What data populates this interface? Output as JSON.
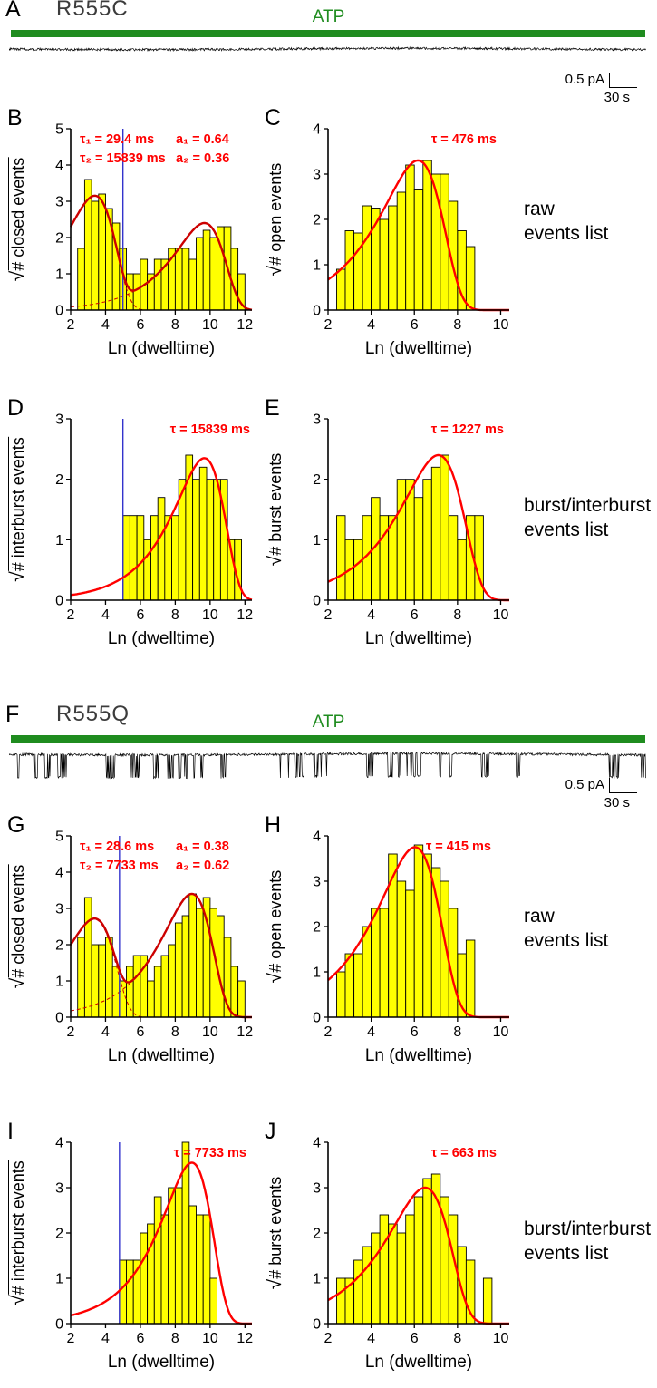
{
  "colors": {
    "bar_fill": "#ffff00",
    "bar_stroke": "#000000",
    "fit_dark_red": "#cc0000",
    "fit_bright_red": "#ff0000",
    "cutoff_line": "#3333cc",
    "atp_green": "#1f8c1f",
    "annotation_red": "#ff0000"
  },
  "symbols": {
    "sqrt": "√"
  },
  "trace_panels": [
    {
      "letter": "A",
      "title": "R555C",
      "atp": "ATP",
      "scale_current": "0.5 pA",
      "scale_time": "30 s"
    },
    {
      "letter": "F",
      "title": "R555Q",
      "atp": "ATP",
      "scale_current": "0.5 pA",
      "scale_time": "30 s"
    }
  ],
  "side_labels": [
    {
      "lines": [
        "raw",
        "events list"
      ]
    },
    {
      "lines": [
        "burst/interburst",
        "events list"
      ]
    }
  ],
  "chart_data": [
    {
      "type": "bar",
      "letter": "B",
      "ylabel": "# closed events",
      "xlabel": "Ln (dwelltime)",
      "xlim": [
        2,
        12.4
      ],
      "ylim": [
        0,
        5
      ],
      "xticks": [
        2,
        4,
        6,
        8,
        10,
        12
      ],
      "yticks": [
        0,
        1,
        2,
        3,
        4,
        5
      ],
      "bin_start": 2.4,
      "bin_width": 0.4,
      "values": [
        1.7,
        3.6,
        3.0,
        3.2,
        2.8,
        2.4,
        1.7,
        1.0,
        1.0,
        1.4,
        1.0,
        1.4,
        1.4,
        1.7,
        1.7,
        1.7,
        1.4,
        2.0,
        2.2,
        2.0,
        2.3,
        2.3,
        1.7,
        1.0
      ],
      "cutoff_x": 5.0,
      "fit": {
        "color": "#cc0000",
        "show_components": true,
        "components": [
          {
            "tau_ms": 29.4,
            "amp": 3.15
          },
          {
            "tau_ms": 15839,
            "amp": 2.4
          }
        ]
      },
      "annotations": [
        {
          "fx": 0.05,
          "line": 0,
          "text": "τ₁ = 29.4 ms"
        },
        {
          "fx": 0.58,
          "line": 0,
          "text": "a₁ = 0.64"
        },
        {
          "fx": 0.05,
          "line": 1,
          "text": "τ₂ = 15839 ms"
        },
        {
          "fx": 0.58,
          "line": 1,
          "text": "a₂ = 0.36"
        }
      ]
    },
    {
      "type": "bar",
      "letter": "C",
      "ylabel": "# open events",
      "xlabel": "Ln (dwelltime)",
      "xlim": [
        2,
        10.4
      ],
      "ylim": [
        0,
        4
      ],
      "xticks": [
        2,
        4,
        6,
        8,
        10
      ],
      "yticks": [
        0,
        1,
        2,
        3,
        4
      ],
      "bin_start": 2.4,
      "bin_width": 0.4,
      "values": [
        0.9,
        1.75,
        1.7,
        2.3,
        2.25,
        2.0,
        2.3,
        2.6,
        3.2,
        2.65,
        3.3,
        3.0,
        3.0,
        2.4,
        1.75,
        1.4
      ],
      "cutoff_x": null,
      "fit": {
        "color": "#ff0000",
        "show_components": false,
        "components": [
          {
            "tau_ms": 476,
            "amp": 3.3
          }
        ]
      },
      "annotations": [
        {
          "fx": 0.93,
          "line": 0,
          "anchor": "end",
          "text": "τ = 476 ms"
        }
      ]
    },
    {
      "type": "bar",
      "letter": "D",
      "ylabel": "# interburst events",
      "xlabel": "Ln (dwelltime)",
      "xlim": [
        2,
        12.4
      ],
      "ylim": [
        0,
        3
      ],
      "xticks": [
        2,
        4,
        6,
        8,
        10,
        12
      ],
      "yticks": [
        0,
        1,
        2,
        3
      ],
      "bin_start": 5.0,
      "bin_width": 0.4,
      "values": [
        1.4,
        1.4,
        1.4,
        1.0,
        1.4,
        1.7,
        1.4,
        1.4,
        2.0,
        2.4,
        2.0,
        2.2,
        2.0,
        2.0,
        2.0,
        1.0,
        1.0
      ],
      "cutoff_x": 5.0,
      "fit": {
        "color": "#ff0000",
        "show_components": false,
        "components": [
          {
            "tau_ms": 15839,
            "amp": 2.35
          }
        ]
      },
      "annotations": [
        {
          "fx": 0.99,
          "line": 0,
          "anchor": "end",
          "text": "τ = 15839 ms"
        }
      ]
    },
    {
      "type": "bar",
      "letter": "E",
      "ylabel": "# burst events",
      "xlabel": "Ln (dwelltime)",
      "xlim": [
        2,
        10.4
      ],
      "ylim": [
        0,
        3
      ],
      "xticks": [
        2,
        4,
        6,
        8,
        10
      ],
      "yticks": [
        0,
        1,
        2,
        3
      ],
      "bin_start": 2.4,
      "bin_width": 0.4,
      "values": [
        1.4,
        1.0,
        1.0,
        1.4,
        1.7,
        1.4,
        1.4,
        2.0,
        2.0,
        1.7,
        2.0,
        2.2,
        2.4,
        1.4,
        1.0,
        1.4,
        1.4
      ],
      "cutoff_x": null,
      "fit": {
        "color": "#ff0000",
        "show_components": false,
        "components": [
          {
            "tau_ms": 1227,
            "amp": 2.4
          }
        ]
      },
      "annotations": [
        {
          "fx": 0.97,
          "line": 0,
          "anchor": "end",
          "text": "τ = 1227 ms"
        }
      ]
    },
    {
      "type": "bar",
      "letter": "G",
      "ylabel": "# closed events",
      "xlabel": "Ln (dwelltime)",
      "xlim": [
        2,
        12.4
      ],
      "ylim": [
        0,
        5
      ],
      "xticks": [
        2,
        4,
        6,
        8,
        10,
        12
      ],
      "yticks": [
        0,
        1,
        2,
        3,
        4,
        5
      ],
      "bin_start": 2.4,
      "bin_width": 0.4,
      "values": [
        2.2,
        3.3,
        2.0,
        2.0,
        2.2,
        1.4,
        1.0,
        1.4,
        1.7,
        1.7,
        1.0,
        1.4,
        1.7,
        2.0,
        2.6,
        2.8,
        3.4,
        3.0,
        3.3,
        3.0,
        2.8,
        2.2,
        1.4,
        1.0
      ],
      "cutoff_x": 4.8,
      "fit": {
        "color": "#cc0000",
        "show_components": true,
        "components": [
          {
            "tau_ms": 28.6,
            "amp": 2.7
          },
          {
            "tau_ms": 7733,
            "amp": 3.4
          }
        ]
      },
      "annotations": [
        {
          "fx": 0.05,
          "line": 0,
          "text": "τ₁ = 28.6 ms"
        },
        {
          "fx": 0.58,
          "line": 0,
          "text": "a₁ = 0.38"
        },
        {
          "fx": 0.05,
          "line": 1,
          "text": "τ₂ = 7733 ms"
        },
        {
          "fx": 0.58,
          "line": 1,
          "text": "a₂ = 0.62"
        }
      ]
    },
    {
      "type": "bar",
      "letter": "H",
      "ylabel": "# open events",
      "xlabel": "Ln (dwelltime)",
      "xlim": [
        2,
        10.4
      ],
      "ylim": [
        0,
        4
      ],
      "xticks": [
        2,
        4,
        6,
        8,
        10
      ],
      "yticks": [
        0,
        1,
        2,
        3,
        4
      ],
      "bin_start": 2.4,
      "bin_width": 0.4,
      "values": [
        1.0,
        1.4,
        1.4,
        2.0,
        2.4,
        2.4,
        3.6,
        3.0,
        2.8,
        3.8,
        3.6,
        3.3,
        3.0,
        2.4,
        1.4,
        1.7
      ],
      "cutoff_x": null,
      "fit": {
        "color": "#ff0000",
        "show_components": false,
        "components": [
          {
            "tau_ms": 415,
            "amp": 3.75
          }
        ]
      },
      "annotations": [
        {
          "fx": 0.9,
          "line": 0,
          "anchor": "end",
          "text": "τ = 415 ms"
        }
      ]
    },
    {
      "type": "bar",
      "letter": "I",
      "ylabel": "# interburst events",
      "xlabel": "Ln (dwelltime)",
      "xlim": [
        2,
        12.4
      ],
      "ylim": [
        0,
        4
      ],
      "xticks": [
        2,
        4,
        6,
        8,
        10,
        12
      ],
      "yticks": [
        0,
        1,
        2,
        3,
        4
      ],
      "bin_start": 4.8,
      "bin_width": 0.4,
      "values": [
        1.4,
        1.4,
        1.4,
        2.0,
        2.2,
        2.8,
        2.4,
        3.0,
        3.0,
        4.0,
        2.6,
        2.4,
        2.4,
        1.0
      ],
      "cutoff_x": 4.8,
      "fit": {
        "color": "#ff0000",
        "show_components": false,
        "components": [
          {
            "tau_ms": 7733,
            "amp": 3.55
          }
        ]
      },
      "annotations": [
        {
          "fx": 0.97,
          "line": 0,
          "anchor": "end",
          "text": "τ = 7733 ms"
        }
      ]
    },
    {
      "type": "bar",
      "letter": "J",
      "ylabel": "# burst events",
      "xlabel": "Ln (dwelltime)",
      "xlim": [
        2,
        10.4
      ],
      "ylim": [
        0,
        4
      ],
      "xticks": [
        2,
        4,
        6,
        8,
        10
      ],
      "yticks": [
        0,
        1,
        2,
        3,
        4
      ],
      "bin_start": 2.4,
      "bin_width": 0.4,
      "values": [
        1.0,
        1.0,
        1.4,
        1.7,
        2.0,
        2.4,
        2.2,
        2.0,
        2.4,
        2.8,
        3.2,
        3.3,
        2.8,
        2.4,
        1.7,
        1.4,
        0,
        1.0
      ],
      "cutoff_x": null,
      "fit": {
        "color": "#ff0000",
        "show_components": false,
        "components": [
          {
            "tau_ms": 663,
            "amp": 3.0
          }
        ]
      },
      "annotations": [
        {
          "fx": 0.93,
          "line": 0,
          "anchor": "end",
          "text": "τ = 663 ms"
        }
      ]
    }
  ]
}
